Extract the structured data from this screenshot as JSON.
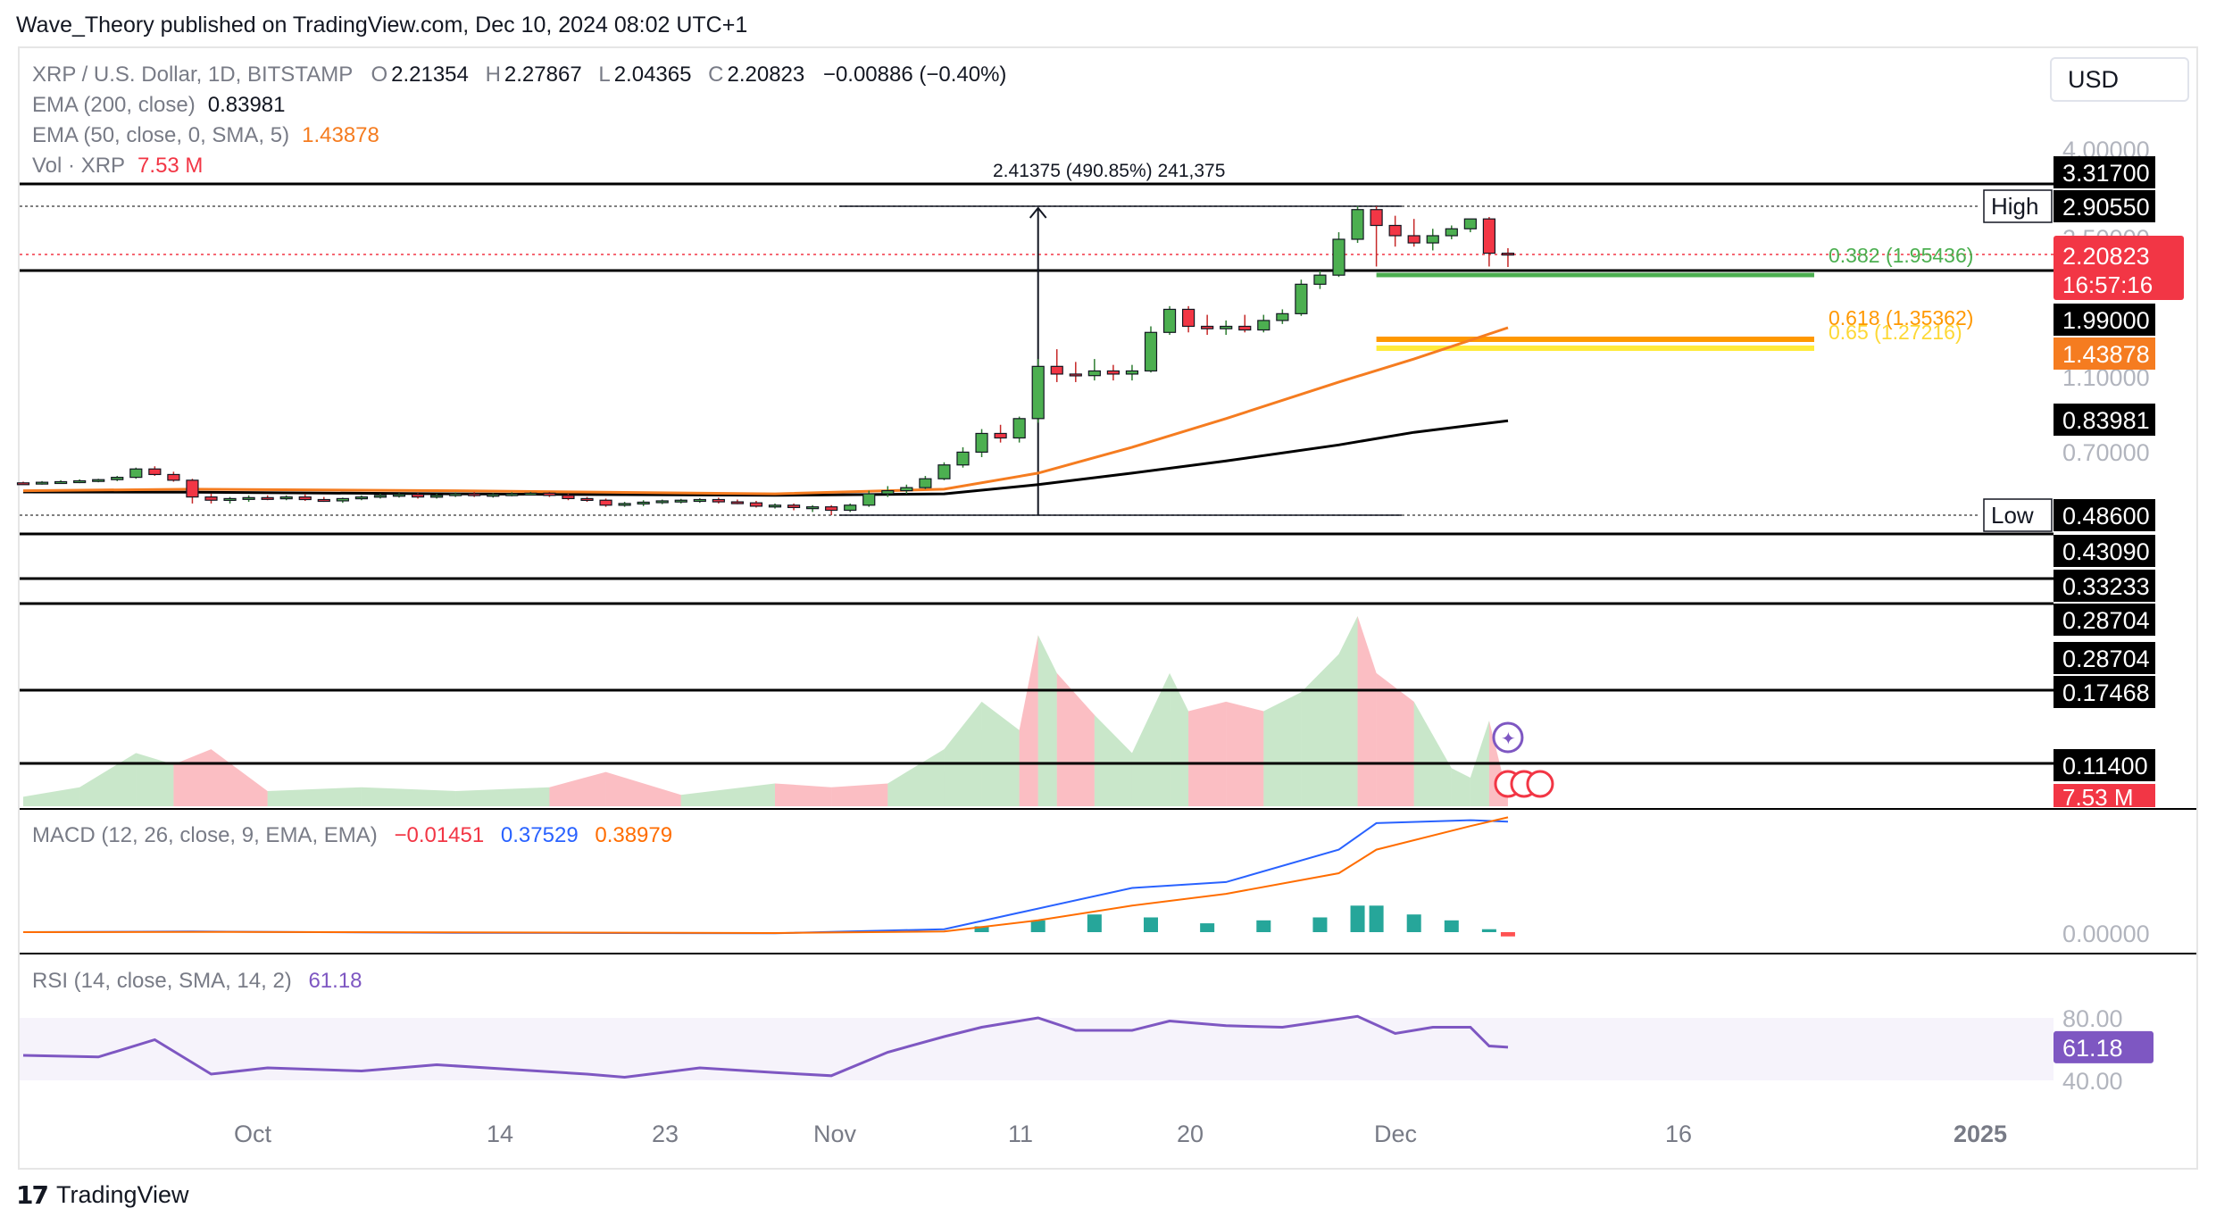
{
  "header": {
    "publisher_line": "Wave_Theory published on TradingView.com, Dec 10, 2024 08:02 UTC+1"
  },
  "legend": {
    "symbol": "XRP / U.S. Dollar, 1D, BITSTAMP",
    "ohlc": [
      {
        "label": "O",
        "value": "2.21354"
      },
      {
        "label": "H",
        "value": "2.27867"
      },
      {
        "label": "L",
        "value": "2.04365"
      },
      {
        "label": "C",
        "value": "2.20823"
      }
    ],
    "change": "−0.00886 (−0.40%)",
    "ema200": {
      "label": "EMA (200, close)",
      "value": "0.83981"
    },
    "ema50": {
      "label": "EMA (50, close, 0, SMA, 5)",
      "value": "1.43878"
    },
    "vol": {
      "label": "Vol · XRP",
      "value": "7.53 M"
    }
  },
  "currency_button": "USD",
  "measure_label": "2.41375 (490.85%) 241,375",
  "fib_labels": {
    "f382": "0.382 (1.95436)",
    "f618": "0.618 (1.35362)",
    "f65": "0.65 (1.27216)"
  },
  "price_axis": {
    "ticks": [
      {
        "label": "4.00000",
        "y": 4.0
      },
      {
        "label": "2.50000",
        "y": 2.5
      },
      {
        "label": "1.10000",
        "y": 1.1
      },
      {
        "label": "0.70000",
        "y": 0.7
      }
    ],
    "tags": [
      {
        "label": "3.31700",
        "value": 3.317,
        "bg": "#000000",
        "fg": "#ffffff"
      },
      {
        "label": "2.90550",
        "value": 2.9055,
        "bg": "#000000",
        "fg": "#ffffff",
        "side_label": "High"
      },
      {
        "label": "1.99000",
        "value": 1.99,
        "bg": "#000000",
        "fg": "#ffffff"
      },
      {
        "label": "1.43878",
        "value": 1.43878,
        "bg": "#f57c20",
        "fg": "#ffffff"
      },
      {
        "label": "0.83981",
        "value": 0.83981,
        "bg": "#000000",
        "fg": "#ffffff"
      },
      {
        "label": "0.48600",
        "value": 0.486,
        "bg": "#000000",
        "fg": "#ffffff",
        "side_label": "Low"
      },
      {
        "label": "0.43090",
        "value": 0.4309,
        "bg": "#000000",
        "fg": "#ffffff"
      },
      {
        "label": "0.33233",
        "value": 0.33233,
        "bg": "#000000",
        "fg": "#ffffff"
      },
      {
        "label": "0.28704",
        "value": 0.28704,
        "bg": "#000000",
        "fg": "#ffffff"
      },
      {
        "label": "0.28704",
        "value": 0.28704,
        "bg": "#000000",
        "fg": "#ffffff"
      },
      {
        "label": "0.17468",
        "value": 0.17468,
        "bg": "#000000",
        "fg": "#ffffff"
      },
      {
        "label": "0.11400",
        "value": 0.114,
        "bg": "#000000",
        "fg": "#ffffff"
      }
    ],
    "last_price": {
      "label": "2.20823",
      "countdown": "16:57:16",
      "bg": "#f23645"
    },
    "volume_tag": {
      "label": "7.53 M",
      "bg": "#f23645"
    }
  },
  "macd_legend": {
    "label": "MACD (12, 26, close, 9, EMA, EMA)",
    "hist": "−0.01451",
    "macd": "0.37529",
    "signal": "0.38979",
    "zero_label": "0.00000"
  },
  "rsi_legend": {
    "label": "RSI (14, close, SMA, 14, 2)",
    "value": "61.18",
    "upper": "80.00",
    "lower": "40.00"
  },
  "time_axis": [
    "Oct",
    "14",
    "23",
    "Nov",
    "11",
    "20",
    "Dec",
    "16",
    "2025"
  ],
  "brand": "TradingView",
  "colors": {
    "up": "#4caf50",
    "down": "#f23645",
    "ema50": "#f57c20",
    "ema200": "#000000",
    "macd": "#2962ff",
    "signal": "#ff6d00",
    "rsi": "#7e57c2",
    "fib382": "#4caf50",
    "fib618": "#ff9800",
    "fib65": "#ffeb3b"
  },
  "chart_data": {
    "type": "candlestick",
    "title": "XRP / U.S. Dollar, 1D, BITSTAMP",
    "xlabel": "",
    "ylabel": "",
    "x_range": [
      "2024-09-22",
      "2025-01-02"
    ],
    "y_scale": "log",
    "grid": false,
    "candles": [
      [
        "2024-09-22",
        0.586,
        0.59,
        0.58,
        0.584
      ],
      [
        "2024-09-23",
        0.584,
        0.592,
        0.58,
        0.588
      ],
      [
        "2024-09-24",
        0.588,
        0.595,
        0.583,
        0.59
      ],
      [
        "2024-09-25",
        0.59,
        0.598,
        0.585,
        0.593
      ],
      [
        "2024-09-26",
        0.593,
        0.6,
        0.588,
        0.597
      ],
      [
        "2024-09-27",
        0.597,
        0.61,
        0.592,
        0.605
      ],
      [
        "2024-09-28",
        0.605,
        0.64,
        0.6,
        0.635
      ],
      [
        "2024-09-29",
        0.635,
        0.645,
        0.61,
        0.615
      ],
      [
        "2024-09-30",
        0.615,
        0.625,
        0.59,
        0.595
      ],
      [
        "2024-10-01",
        0.595,
        0.6,
        0.52,
        0.54
      ],
      [
        "2024-10-02",
        0.54,
        0.55,
        0.52,
        0.53
      ],
      [
        "2024-10-03",
        0.53,
        0.54,
        0.52,
        0.535
      ],
      [
        "2024-10-04",
        0.535,
        0.545,
        0.525,
        0.538
      ],
      [
        "2024-10-05",
        0.538,
        0.545,
        0.53,
        0.536
      ],
      [
        "2024-10-06",
        0.536,
        0.545,
        0.53,
        0.54
      ],
      [
        "2024-10-07",
        0.54,
        0.548,
        0.528,
        0.532
      ],
      [
        "2024-10-08",
        0.532,
        0.54,
        0.525,
        0.528
      ],
      [
        "2024-10-09",
        0.528,
        0.538,
        0.522,
        0.535
      ],
      [
        "2024-10-10",
        0.535,
        0.545,
        0.53,
        0.54
      ],
      [
        "2024-10-11",
        0.54,
        0.55,
        0.535,
        0.545
      ],
      [
        "2024-10-12",
        0.545,
        0.552,
        0.538,
        0.548
      ],
      [
        "2024-10-13",
        0.548,
        0.552,
        0.535,
        0.54
      ],
      [
        "2024-10-14",
        0.54,
        0.55,
        0.535,
        0.545
      ],
      [
        "2024-10-15",
        0.545,
        0.555,
        0.54,
        0.55
      ],
      [
        "2024-10-16",
        0.55,
        0.556,
        0.54,
        0.545
      ],
      [
        "2024-10-17",
        0.545,
        0.552,
        0.538,
        0.548
      ],
      [
        "2024-10-18",
        0.548,
        0.555,
        0.542,
        0.55
      ],
      [
        "2024-10-19",
        0.55,
        0.556,
        0.545,
        0.552
      ],
      [
        "2024-10-20",
        0.552,
        0.556,
        0.54,
        0.545
      ],
      [
        "2024-10-21",
        0.545,
        0.55,
        0.53,
        0.535
      ],
      [
        "2024-10-22",
        0.535,
        0.54,
        0.525,
        0.53
      ],
      [
        "2024-10-23",
        0.53,
        0.535,
        0.51,
        0.515
      ],
      [
        "2024-10-24",
        0.515,
        0.525,
        0.51,
        0.52
      ],
      [
        "2024-10-25",
        0.52,
        0.53,
        0.512,
        0.524
      ],
      [
        "2024-10-26",
        0.524,
        0.532,
        0.518,
        0.528
      ],
      [
        "2024-10-27",
        0.528,
        0.534,
        0.52,
        0.53
      ],
      [
        "2024-10-28",
        0.53,
        0.536,
        0.522,
        0.532
      ],
      [
        "2024-10-29",
        0.532,
        0.538,
        0.52,
        0.525
      ],
      [
        "2024-10-30",
        0.525,
        0.532,
        0.518,
        0.522
      ],
      [
        "2024-10-31",
        0.522,
        0.528,
        0.508,
        0.512
      ],
      [
        "2024-11-01",
        0.512,
        0.52,
        0.505,
        0.515
      ],
      [
        "2024-11-02",
        0.515,
        0.52,
        0.5,
        0.508
      ],
      [
        "2024-11-03",
        0.508,
        0.515,
        0.495,
        0.51
      ],
      [
        "2024-11-04",
        0.51,
        0.515,
        0.486,
        0.5
      ],
      [
        "2024-11-05",
        0.5,
        0.52,
        0.495,
        0.515
      ],
      [
        "2024-11-06",
        0.515,
        0.56,
        0.51,
        0.55
      ],
      [
        "2024-11-07",
        0.55,
        0.575,
        0.54,
        0.56
      ],
      [
        "2024-11-08",
        0.56,
        0.58,
        0.55,
        0.57
      ],
      [
        "2024-11-09",
        0.57,
        0.61,
        0.565,
        0.6
      ],
      [
        "2024-11-10",
        0.6,
        0.66,
        0.595,
        0.65
      ],
      [
        "2024-11-11",
        0.65,
        0.72,
        0.64,
        0.7
      ],
      [
        "2024-11-12",
        0.7,
        0.8,
        0.68,
        0.78
      ],
      [
        "2024-11-13",
        0.78,
        0.82,
        0.74,
        0.76
      ],
      [
        "2024-11-14",
        0.76,
        0.86,
        0.74,
        0.85
      ],
      [
        "2024-11-15",
        0.85,
        1.2,
        0.83,
        1.15
      ],
      [
        "2024-11-16",
        1.15,
        1.27,
        1.05,
        1.1
      ],
      [
        "2024-11-17",
        1.1,
        1.18,
        1.05,
        1.09
      ],
      [
        "2024-11-18",
        1.09,
        1.2,
        1.06,
        1.12
      ],
      [
        "2024-11-19",
        1.12,
        1.16,
        1.06,
        1.1
      ],
      [
        "2024-11-20",
        1.1,
        1.16,
        1.06,
        1.12
      ],
      [
        "2024-11-21",
        1.12,
        1.45,
        1.11,
        1.4
      ],
      [
        "2024-11-22",
        1.4,
        1.63,
        1.38,
        1.6
      ],
      [
        "2024-11-23",
        1.6,
        1.63,
        1.4,
        1.45
      ],
      [
        "2024-11-24",
        1.45,
        1.55,
        1.38,
        1.43
      ],
      [
        "2024-11-25",
        1.43,
        1.5,
        1.38,
        1.45
      ],
      [
        "2024-11-26",
        1.45,
        1.55,
        1.4,
        1.42
      ],
      [
        "2024-11-27",
        1.42,
        1.55,
        1.4,
        1.5
      ],
      [
        "2024-11-28",
        1.5,
        1.6,
        1.47,
        1.56
      ],
      [
        "2024-11-29",
        1.56,
        1.9,
        1.54,
        1.85
      ],
      [
        "2024-11-30",
        1.85,
        2.0,
        1.8,
        1.95
      ],
      [
        "2024-12-01",
        1.95,
        2.5,
        1.93,
        2.4
      ],
      [
        "2024-12-02",
        2.4,
        2.905,
        2.35,
        2.85
      ],
      [
        "2024-12-03",
        2.85,
        2.905,
        2.05,
        2.6
      ],
      [
        "2024-12-04",
        2.6,
        2.75,
        2.3,
        2.45
      ],
      [
        "2024-12-05",
        2.45,
        2.7,
        2.3,
        2.35
      ],
      [
        "2024-12-06",
        2.35,
        2.55,
        2.25,
        2.45
      ],
      [
        "2024-12-07",
        2.45,
        2.6,
        2.4,
        2.55
      ],
      [
        "2024-12-08",
        2.55,
        2.7,
        2.5,
        2.7
      ],
      [
        "2024-12-09",
        2.7,
        2.73,
        2.05,
        2.214
      ],
      [
        "2024-12-10",
        2.214,
        2.279,
        2.044,
        2.208
      ]
    ],
    "ema50": [
      [
        "2024-09-22",
        0.56
      ],
      [
        "2024-10-01",
        0.565
      ],
      [
        "2024-10-15",
        0.56
      ],
      [
        "2024-11-01",
        0.55
      ],
      [
        "2024-11-10",
        0.565
      ],
      [
        "2024-11-15",
        0.62
      ],
      [
        "2024-11-20",
        0.72
      ],
      [
        "2024-11-25",
        0.85
      ],
      [
        "2024-12-01",
        1.05
      ],
      [
        "2024-12-05",
        1.2
      ],
      [
        "2024-12-10",
        1.43878
      ]
    ],
    "ema200": [
      [
        "2024-09-22",
        0.556
      ],
      [
        "2024-10-01",
        0.555
      ],
      [
        "2024-10-15",
        0.55
      ],
      [
        "2024-11-01",
        0.545
      ],
      [
        "2024-11-10",
        0.55
      ],
      [
        "2024-11-15",
        0.58
      ],
      [
        "2024-11-20",
        0.62
      ],
      [
        "2024-11-25",
        0.665
      ],
      [
        "2024-12-01",
        0.73
      ],
      [
        "2024-12-05",
        0.785
      ],
      [
        "2024-12-10",
        0.83981
      ]
    ],
    "horizontal_levels": [
      3.317,
      1.99,
      0.4309,
      0.33233,
      0.28704,
      0.17468,
      0.114
    ],
    "fib_levels": [
      {
        "ratio": 0.382,
        "value": 1.95436
      },
      {
        "ratio": 0.618,
        "value": 1.35362
      },
      {
        "ratio": 0.65,
        "value": 1.27216
      }
    ],
    "measurement": {
      "from": 0.486,
      "to": 2.9055,
      "x": "2024-11-15"
    },
    "volume": [
      [
        "2024-09-22",
        0.05,
        "up"
      ],
      [
        "2024-09-25",
        0.1,
        "up"
      ],
      [
        "2024-09-28",
        0.28,
        "up"
      ],
      [
        "2024-09-30",
        0.22,
        "down"
      ],
      [
        "2024-10-02",
        0.3,
        "down"
      ],
      [
        "2024-10-05",
        0.08,
        "up"
      ],
      [
        "2024-10-10",
        0.1,
        "up"
      ],
      [
        "2024-10-15",
        0.08,
        "up"
      ],
      [
        "2024-10-20",
        0.1,
        "down"
      ],
      [
        "2024-10-23",
        0.18,
        "down"
      ],
      [
        "2024-10-27",
        0.06,
        "up"
      ],
      [
        "2024-11-01",
        0.12,
        "down"
      ],
      [
        "2024-11-04",
        0.1,
        "down"
      ],
      [
        "2024-11-07",
        0.12,
        "up"
      ],
      [
        "2024-11-10",
        0.3,
        "up"
      ],
      [
        "2024-11-12",
        0.55,
        "up"
      ],
      [
        "2024-11-14",
        0.4,
        "down"
      ],
      [
        "2024-11-15",
        0.9,
        "up"
      ],
      [
        "2024-11-16",
        0.7,
        "down"
      ],
      [
        "2024-11-18",
        0.48,
        "up"
      ],
      [
        "2024-11-20",
        0.28,
        "up"
      ],
      [
        "2024-11-22",
        0.7,
        "up"
      ],
      [
        "2024-11-23",
        0.5,
        "down"
      ],
      [
        "2024-11-25",
        0.55,
        "down"
      ],
      [
        "2024-11-27",
        0.5,
        "up"
      ],
      [
        "2024-11-29",
        0.6,
        "up"
      ],
      [
        "2024-12-01",
        0.8,
        "up"
      ],
      [
        "2024-12-02",
        1.0,
        "down"
      ],
      [
        "2024-12-03",
        0.7,
        "down"
      ],
      [
        "2024-12-05",
        0.55,
        "up"
      ],
      [
        "2024-12-07",
        0.2,
        "up"
      ],
      [
        "2024-12-08",
        0.15,
        "up"
      ],
      [
        "2024-12-09",
        0.45,
        "down"
      ],
      [
        "2024-12-10",
        0.05,
        "down"
      ]
    ],
    "macd_series": [
      [
        "2024-09-22",
        0.0
      ],
      [
        "2024-10-01",
        0.002
      ],
      [
        "2024-10-15",
        -0.002
      ],
      [
        "2024-11-01",
        -0.004
      ],
      [
        "2024-11-10",
        0.01
      ],
      [
        "2024-11-15",
        0.08
      ],
      [
        "2024-11-20",
        0.15
      ],
      [
        "2024-11-25",
        0.17
      ],
      [
        "2024-12-01",
        0.28
      ],
      [
        "2024-12-03",
        0.37
      ],
      [
        "2024-12-08",
        0.38
      ],
      [
        "2024-12-10",
        0.37529
      ]
    ],
    "signal_series": [
      [
        "2024-09-22",
        0.0
      ],
      [
        "2024-10-01",
        0.001
      ],
      [
        "2024-10-15",
        -0.001
      ],
      [
        "2024-11-01",
        -0.003
      ],
      [
        "2024-11-10",
        0.002
      ],
      [
        "2024-11-15",
        0.04
      ],
      [
        "2024-11-20",
        0.09
      ],
      [
        "2024-11-25",
        0.13
      ],
      [
        "2024-12-01",
        0.2
      ],
      [
        "2024-12-03",
        0.28
      ],
      [
        "2024-12-08",
        0.36
      ],
      [
        "2024-12-10",
        0.38979
      ]
    ],
    "macd_hist": [
      [
        "2024-11-12",
        0.02
      ],
      [
        "2024-11-15",
        0.04
      ],
      [
        "2024-11-18",
        0.06
      ],
      [
        "2024-11-21",
        0.05
      ],
      [
        "2024-11-24",
        0.03
      ],
      [
        "2024-11-27",
        0.04
      ],
      [
        "2024-11-30",
        0.05
      ],
      [
        "2024-12-02",
        0.09
      ],
      [
        "2024-12-03",
        0.09
      ],
      [
        "2024-12-05",
        0.06
      ],
      [
        "2024-12-07",
        0.04
      ],
      [
        "2024-12-09",
        0.01
      ],
      [
        "2024-12-10",
        -0.01451
      ]
    ],
    "rsi": [
      [
        "2024-09-22",
        56
      ],
      [
        "2024-09-26",
        55
      ],
      [
        "2024-09-29",
        66
      ],
      [
        "2024-10-02",
        44
      ],
      [
        "2024-10-05",
        48
      ],
      [
        "2024-10-10",
        46
      ],
      [
        "2024-10-14",
        50
      ],
      [
        "2024-10-18",
        47
      ],
      [
        "2024-10-22",
        44
      ],
      [
        "2024-10-24",
        42
      ],
      [
        "2024-10-28",
        48
      ],
      [
        "2024-11-01",
        45
      ],
      [
        "2024-11-04",
        43
      ],
      [
        "2024-11-07",
        58
      ],
      [
        "2024-11-10",
        68
      ],
      [
        "2024-11-12",
        74
      ],
      [
        "2024-11-15",
        80
      ],
      [
        "2024-11-17",
        72
      ],
      [
        "2024-11-20",
        72
      ],
      [
        "2024-11-22",
        78
      ],
      [
        "2024-11-25",
        75
      ],
      [
        "2024-11-28",
        74
      ],
      [
        "2024-12-02",
        81
      ],
      [
        "2024-12-04",
        70
      ],
      [
        "2024-12-06",
        74
      ],
      [
        "2024-12-08",
        74
      ],
      [
        "2024-12-09",
        62
      ],
      [
        "2024-12-10",
        61.18
      ]
    ]
  }
}
